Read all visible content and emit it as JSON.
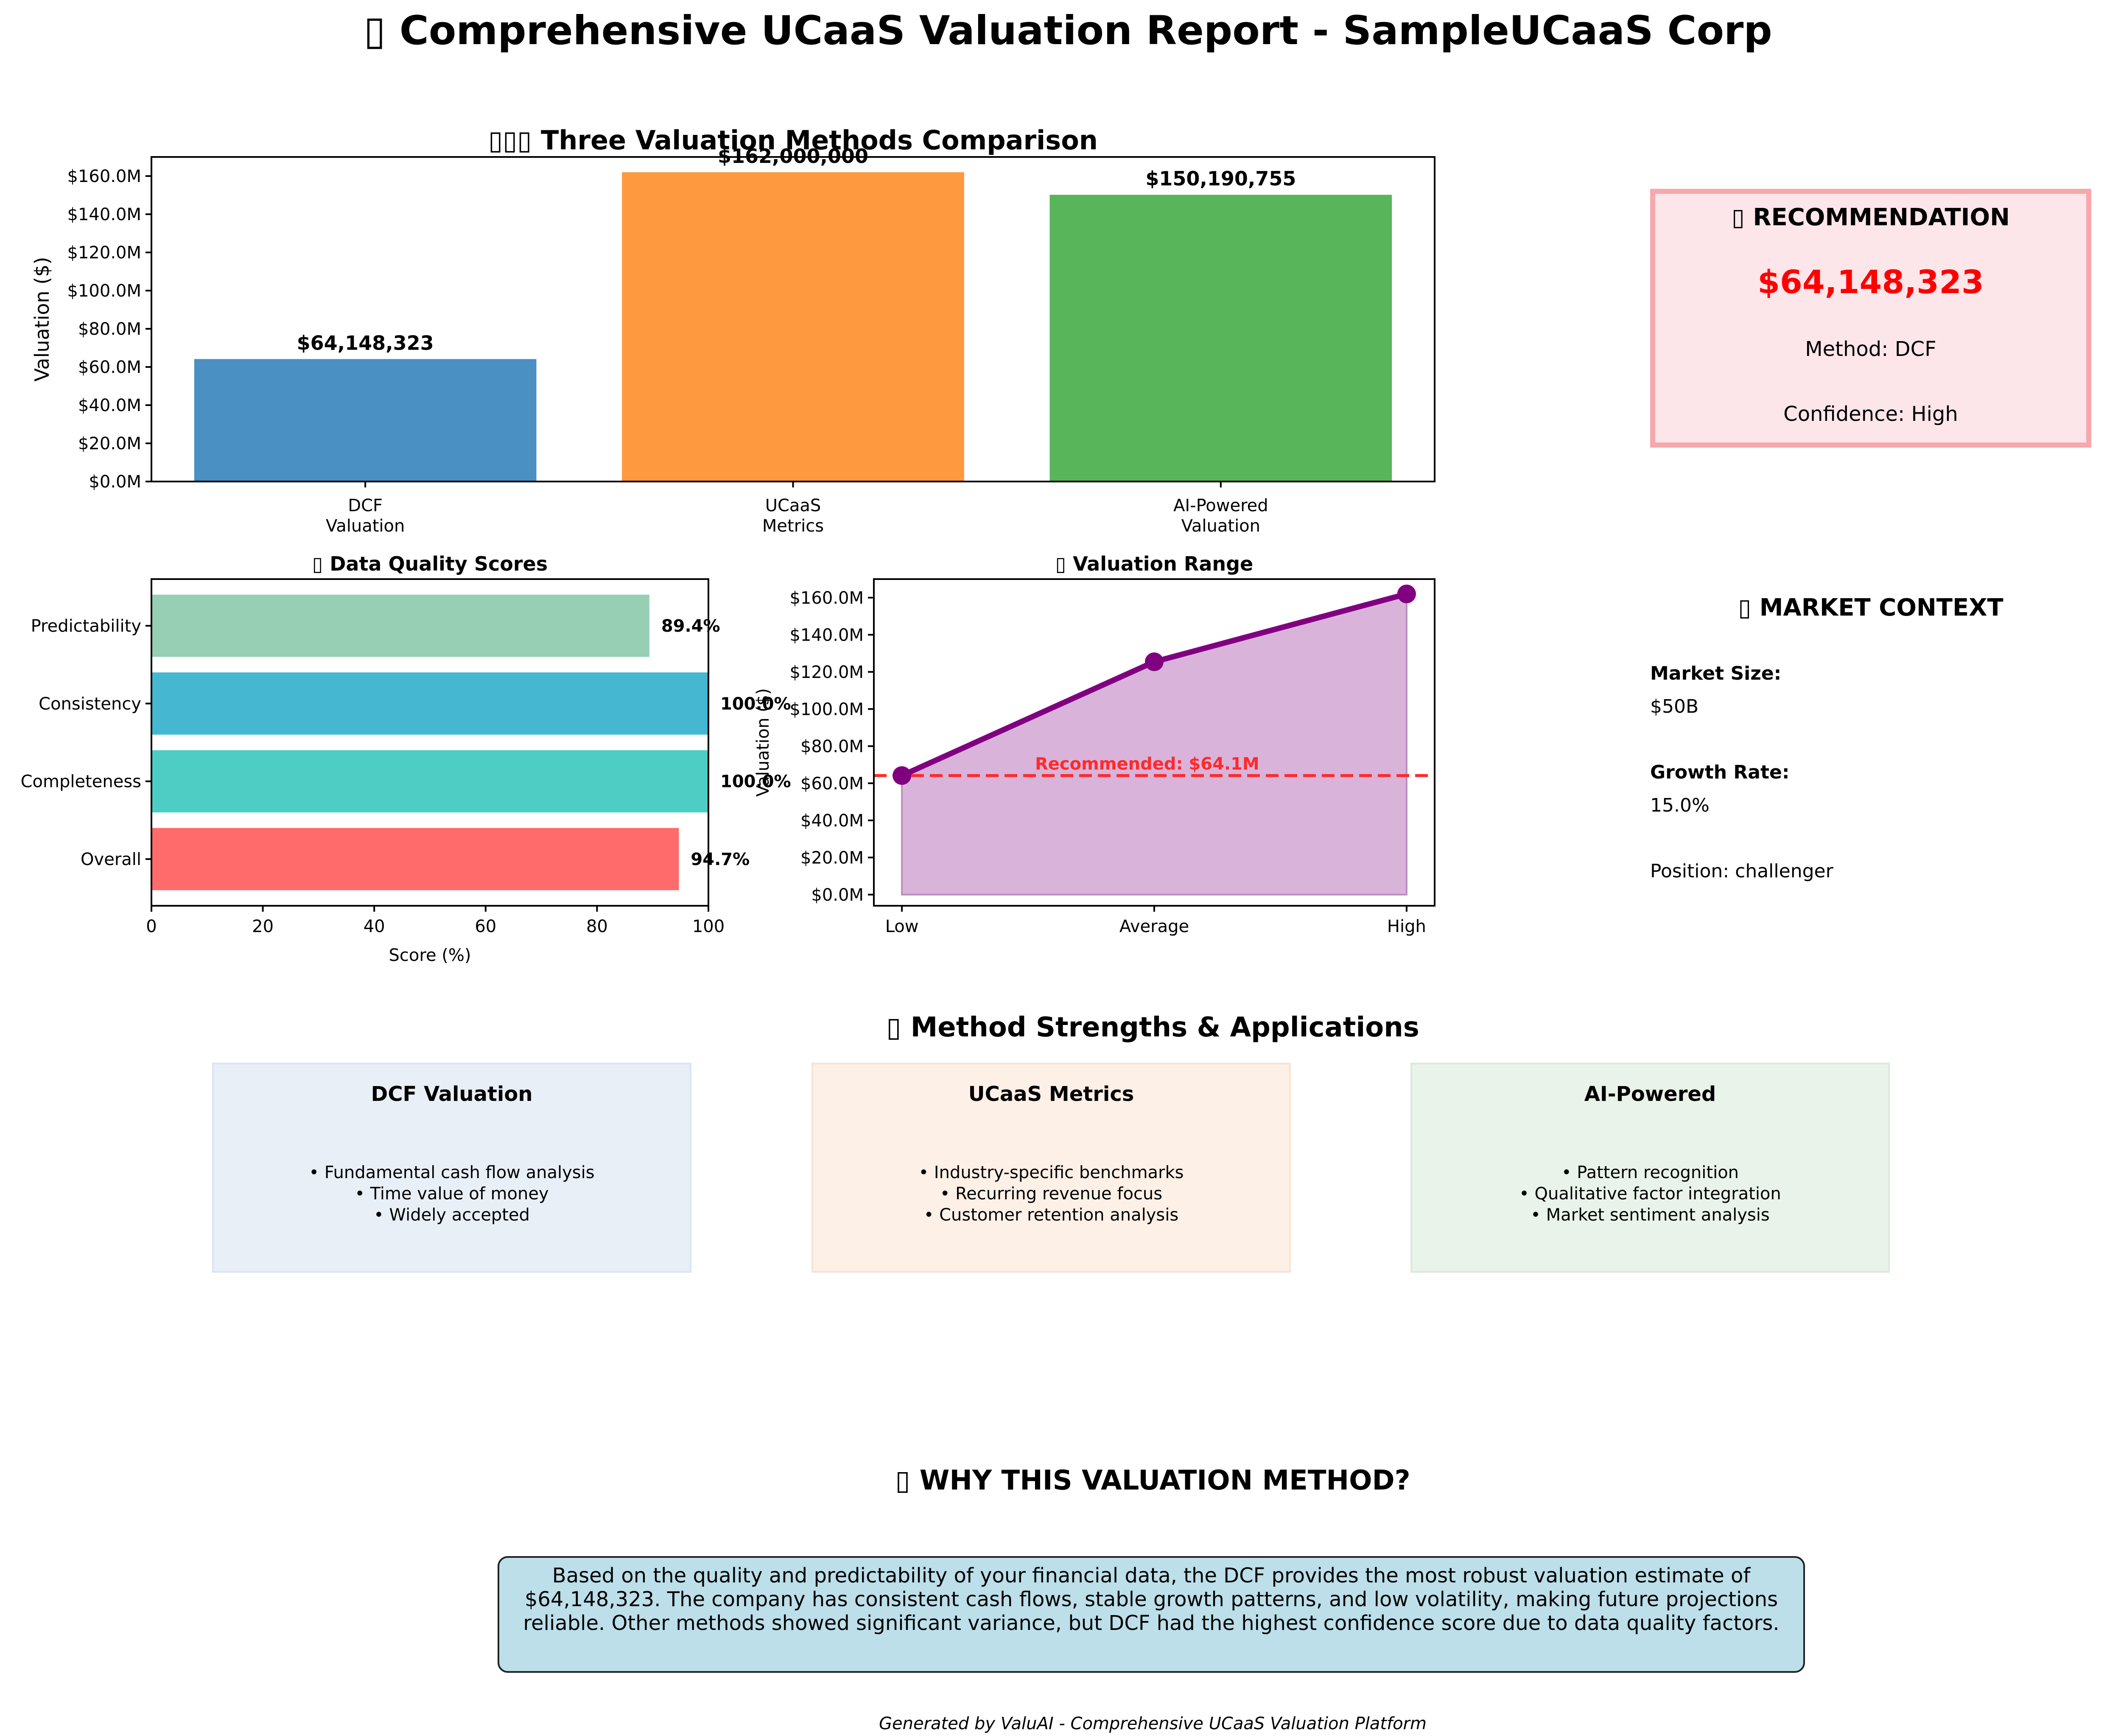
{
  "main_title": "▯ Comprehensive UCaaS Valuation Report - SampleUCaaS Corp",
  "colors": {
    "dcf": "#4a90c2",
    "ucaas": "#fe9940",
    "ai": "#58b55a",
    "quality": [
      "#ff6b6b",
      "#4ecdc4",
      "#45b7d1",
      "#96cfb4"
    ],
    "range_line": "#800080",
    "range_fill": "#d9b3da",
    "recommended_line": "#ff2a2a",
    "recommendation_value": "#ff0000"
  },
  "chart_data": [
    {
      "type": "bar",
      "title": "▯▯▯ Three Valuation Methods Comparison",
      "categories": [
        "DCF\nValuation",
        "UCaaS\nMetrics",
        "AI-Powered\nValuation"
      ],
      "values": [
        64148323,
        162000000,
        150190755
      ],
      "data_labels": [
        "$64,148,323",
        "$162,000,000",
        "$150,190,755"
      ],
      "ylabel": "Valuation ($)",
      "ylim": [
        0,
        170000000
      ],
      "yticks": [
        "$0.0M",
        "$20.0M",
        "$40.0M",
        "$60.0M",
        "$80.0M",
        "$100.0M",
        "$120.0M",
        "$140.0M",
        "$160.0M"
      ],
      "grid": false
    },
    {
      "type": "bar",
      "orientation": "horizontal",
      "title": "▯ Data Quality Scores",
      "categories": [
        "Overall",
        "Completeness",
        "Consistency",
        "Predictability"
      ],
      "values": [
        94.7,
        100.0,
        100.0,
        89.4
      ],
      "data_labels": [
        "94.7%",
        "100.0%",
        "100.0%",
        "89.4%"
      ],
      "xlabel": "Score (%)",
      "xlim": [
        0,
        100
      ],
      "xticks": [
        "0",
        "20",
        "40",
        "60",
        "80",
        "100"
      ],
      "grid": false
    },
    {
      "type": "area",
      "title": "▯ Valuation Range",
      "categories": [
        "Low",
        "Average",
        "High"
      ],
      "values": [
        64148323,
        125446359,
        162000000
      ],
      "ylabel": "Valuation ($)",
      "ylim": [
        -6000000,
        170000000
      ],
      "yticks": [
        "$0.0M",
        "$20.0M",
        "$40.0M",
        "$60.0M",
        "$80.0M",
        "$100.0M",
        "$120.0M",
        "$140.0M",
        "$160.0M"
      ],
      "reference_line": {
        "value": 64148323,
        "label": "Recommended: $64.1M"
      },
      "grid": false
    }
  ],
  "recommendation": {
    "header": "▯ RECOMMENDATION",
    "value": "$64,148,323",
    "method": "Method: DCF",
    "confidence": "Confidence: High"
  },
  "market_context": {
    "header": "▯ MARKET CONTEXT",
    "size_label": "Market Size:",
    "size_value": "$50B",
    "growth_label": "Growth Rate:",
    "growth_value": "15.0%",
    "position": "Position: challenger"
  },
  "strengths": {
    "title": "▯ Method Strengths & Applications",
    "cards": [
      {
        "title": "DCF Valuation",
        "bullets": [
          "• Fundamental cash flow analysis",
          "• Time value of money",
          "• Widely accepted"
        ],
        "bg": "#e8eff7",
        "border": "#dbe5f0"
      },
      {
        "title": "UCaaS Metrics",
        "bullets": [
          "• Industry-specific benchmarks",
          "• Recurring revenue focus",
          "• Customer retention analysis"
        ],
        "bg": "#fdf0e6",
        "border": "#f5e4d6"
      },
      {
        "title": "AI-Powered",
        "bullets": [
          "• Pattern recognition",
          "• Qualitative factor integration",
          "• Market sentiment analysis"
        ],
        "bg": "#e9f3e9",
        "border": "#dbeadb"
      }
    ]
  },
  "why": {
    "title": "▯ WHY THIS VALUATION METHOD?",
    "body": "Based on the quality and predictability of your financial data, the DCF provides the most robust valuation estimate of $64,148,323. The company has consistent cash flows, stable growth patterns, and low volatility, making future projections reliable. Other methods showed significant variance, but DCF had the highest confidence score due to data quality factors."
  },
  "footer": "Generated by ValuAI - Comprehensive UCaaS Valuation Platform"
}
